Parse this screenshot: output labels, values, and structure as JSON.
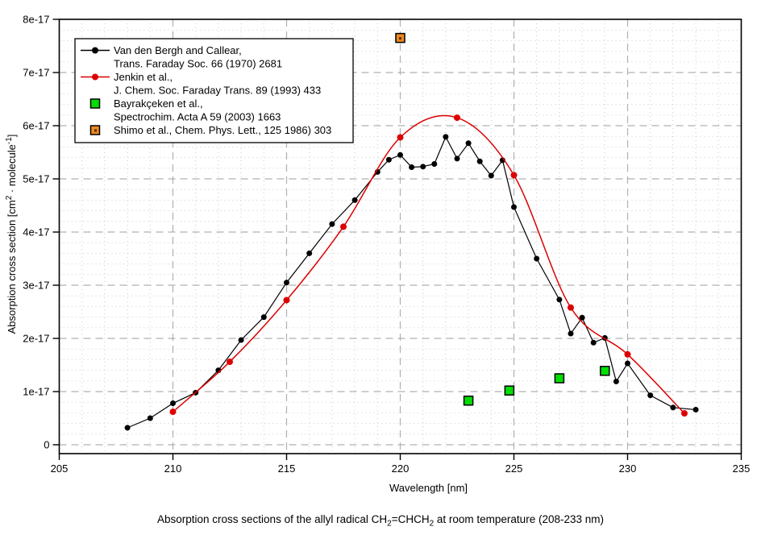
{
  "figure_caption_segments": [
    {
      "t": "Absorption cross sections of the allyl radical CH"
    },
    {
      "sub": "2"
    },
    {
      "t": "=CHCH"
    },
    {
      "sub": "2"
    },
    {
      "t": " at room temperature (208-233 nm)"
    }
  ],
  "axes": {
    "x_title": "Wavelength [nm]",
    "y_title_segments": [
      {
        "t": "Absorption cross section [cm"
      },
      {
        "sup": "2"
      },
      {
        "t": " · molecule"
      },
      {
        "sup": "-1"
      },
      {
        "t": "]"
      }
    ],
    "x_tick_labels": [
      "205",
      "210",
      "215",
      "220",
      "225",
      "230",
      "235"
    ],
    "y_tick_labels": [
      "0",
      "1e-17",
      "2e-17",
      "3e-17",
      "4e-17",
      "5e-17",
      "6e-17",
      "7e-17",
      "8e-17"
    ]
  },
  "legend": {
    "items": [
      {
        "marker": "line-circle",
        "color": "#000000",
        "line1": "Van den Bergh and Callear,",
        "line2": "Trans. Faraday Soc. 66 (1970) 2681"
      },
      {
        "marker": "line-circle",
        "color": "#dd0000",
        "line1": "Jenkin et al.,",
        "line2": "J. Chem. Soc. Faraday Trans. 89 (1993) 433"
      },
      {
        "marker": "square",
        "color": "#00dd00",
        "line1": "Bayrakçeken et al.,",
        "line2": "Spectrochim. Acta A 59 (2003) 1663"
      },
      {
        "marker": "square-dot",
        "color": "#ee8822",
        "line1": "Shimo et al., Chem. Phys. Lett., 125 1986) 303",
        "line2": ""
      }
    ]
  },
  "chart_data": {
    "type": "line",
    "title": "Absorption cross sections of the allyl radical CH2=CHCH2 at room temperature (208-233 nm)",
    "xlabel": "Wavelength [nm]",
    "ylabel": "Absorption cross section [cm2 · molecule-1]",
    "xlim": [
      205,
      235
    ],
    "y_scale_factor": "1e-17",
    "ylim_scaled": [
      -0.17,
      8
    ],
    "x_major_tick_step": 5,
    "x_minor_tick_step": 1,
    "y_major_step_scaled": 1,
    "y_minor_step_scaled": 0.2,
    "grid": true,
    "legend_position": "top-left",
    "series": [
      {
        "name": "Van den Bergh and Callear, Trans. Faraday Soc. 66 (1970) 2681",
        "marker": "circle",
        "color": "#000000",
        "line": "straight",
        "x": [
          208,
          209,
          210,
          211,
          212,
          213,
          214,
          215,
          216,
          217,
          218,
          219,
          219.5,
          220,
          220.5,
          221,
          221.5,
          222,
          222.5,
          223,
          223.5,
          224,
          224.5,
          225,
          226,
          227,
          227.5,
          228,
          228.5,
          229,
          229.5,
          230,
          231,
          232,
          233
        ],
        "y": [
          0.32,
          0.5,
          0.78,
          0.98,
          1.4,
          1.97,
          2.4,
          3.05,
          3.6,
          4.15,
          4.6,
          5.13,
          5.36,
          5.45,
          5.22,
          5.23,
          5.28,
          5.79,
          5.38,
          5.67,
          5.33,
          5.06,
          5.35,
          4.47,
          3.5,
          2.73,
          2.09,
          2.39,
          1.92,
          2.01,
          1.19,
          1.53,
          0.93,
          0.7,
          0.66
        ]
      },
      {
        "name": "Jenkin et al., J. Chem. Soc. Faraday Trans. 89 (1993) 433",
        "marker": "circle",
        "color": "#dd0000",
        "line": "smooth",
        "x": [
          210,
          212.5,
          215,
          217.5,
          220,
          222.5,
          225,
          227.5,
          230,
          232.5
        ],
        "y": [
          0.62,
          1.56,
          2.72,
          4.1,
          5.78,
          6.15,
          5.07,
          2.58,
          1.7,
          0.59
        ]
      },
      {
        "name": "Bayrakçeken et al., Spectrochim. Acta A 59 (2003) 1663",
        "marker": "square",
        "color": "#00dd00",
        "line": "none",
        "x": [
          223,
          224.8,
          227,
          229
        ],
        "y": [
          0.83,
          1.02,
          1.25,
          1.39
        ]
      },
      {
        "name": "Shimo et al., Chem. Phys. Lett., 125 1986) 303",
        "marker": "square-dot",
        "color": "#ee8822",
        "line": "none",
        "x": [
          220
        ],
        "y": [
          7.65
        ]
      }
    ]
  },
  "style": {
    "series_black": "#000000",
    "series_red": "#dd0000",
    "series_green": "#00dd00",
    "series_orange": "#ee8822",
    "orange_center_dot": "#5a3000",
    "grid_major": "#b0b0b0",
    "grid_minor": "#c9c9c9",
    "axis_color": "#000000",
    "background": "#ffffff"
  }
}
